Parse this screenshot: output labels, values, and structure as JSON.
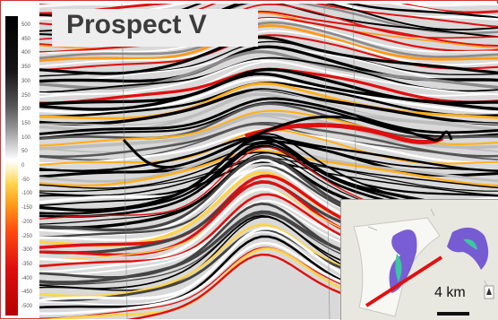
{
  "title": "Prospect V",
  "scale_label": "4 km",
  "colorbar": {
    "ticks": [
      "500",
      "450",
      "400",
      "350",
      "300",
      "250",
      "200",
      "150",
      "100",
      "50",
      "0",
      "-50",
      "-100",
      "-150",
      "-200",
      "-250",
      "-300",
      "-350",
      "-400",
      "-450",
      "-500"
    ]
  },
  "colors": {
    "interpretation_line": "#000000",
    "section_line": "#e01010",
    "peak": "#000000",
    "trough": "#e00f0f"
  },
  "icons": {
    "map_inset": "map-inset",
    "north_arrow": "compass-icon"
  }
}
